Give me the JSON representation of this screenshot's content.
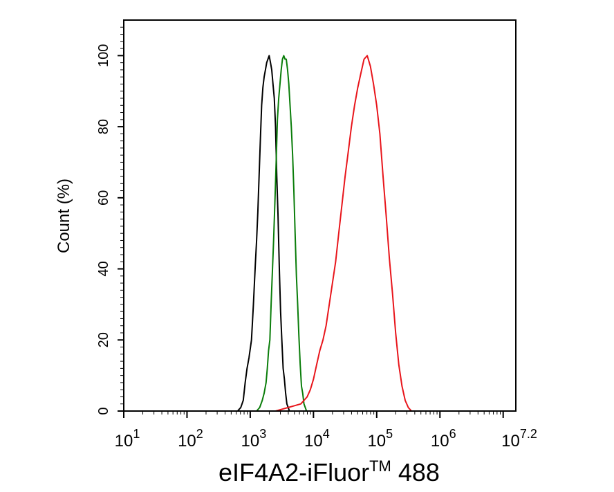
{
  "chart_data": {
    "type": "line",
    "title": "",
    "xlabel": "eIF4A2-iFluor",
    "xlabel_sup": "TM",
    "xlabel_suffix": " 488",
    "ylabel": "Count  (%)",
    "xscale": "log",
    "xlim": [
      10,
      15848932
    ],
    "ylim": [
      0,
      110
    ],
    "grid": false,
    "legend": "none",
    "x_ticks": [
      {
        "base": "10",
        "exp": "1",
        "value": 10
      },
      {
        "base": "10",
        "exp": "2",
        "value": 100
      },
      {
        "base": "10",
        "exp": "3",
        "value": 1000
      },
      {
        "base": "10",
        "exp": "4",
        "value": 10000
      },
      {
        "base": "10",
        "exp": "5",
        "value": 100000
      },
      {
        "base": "10",
        "exp": "6",
        "value": 1000000
      },
      {
        "base": "10",
        "exp": "7.2",
        "value": 15848932
      }
    ],
    "y_ticks": [
      "0",
      "20",
      "40",
      "60",
      "80",
      "100"
    ],
    "series": [
      {
        "color": "#000000",
        "points": [
          [
            631,
            0
          ],
          [
            708,
            1
          ],
          [
            776,
            3
          ],
          [
            832,
            8
          ],
          [
            891,
            12
          ],
          [
            955,
            15
          ],
          [
            1047,
            20
          ],
          [
            1122,
            30
          ],
          [
            1202,
            41
          ],
          [
            1259,
            48
          ],
          [
            1318,
            56
          ],
          [
            1380,
            66
          ],
          [
            1445,
            76
          ],
          [
            1514,
            86
          ],
          [
            1585,
            91
          ],
          [
            1660,
            94
          ],
          [
            1738,
            96
          ],
          [
            1820,
            98
          ],
          [
            1905,
            99
          ],
          [
            1995,
            100
          ],
          [
            2089,
            98
          ],
          [
            2188,
            96
          ],
          [
            2291,
            92
          ],
          [
            2399,
            88
          ],
          [
            2512,
            80
          ],
          [
            2630,
            66
          ],
          [
            2754,
            55
          ],
          [
            2884,
            40
          ],
          [
            3020,
            28
          ],
          [
            3162,
            20
          ],
          [
            3311,
            12
          ],
          [
            3467,
            9
          ],
          [
            3631,
            5
          ],
          [
            3802,
            2
          ],
          [
            3981,
            1
          ],
          [
            4169,
            0
          ]
        ]
      },
      {
        "color": "#0a7d0a",
        "points": [
          [
            1259,
            0
          ],
          [
            1412,
            1
          ],
          [
            1549,
            3
          ],
          [
            1660,
            5
          ],
          [
            1778,
            8
          ],
          [
            1862,
            12
          ],
          [
            1950,
            17
          ],
          [
            2042,
            20
          ],
          [
            2138,
            30
          ],
          [
            2239,
            39
          ],
          [
            2344,
            48
          ],
          [
            2455,
            59
          ],
          [
            2570,
            70
          ],
          [
            2692,
            82
          ],
          [
            2818,
            88
          ],
          [
            2951,
            92
          ],
          [
            3090,
            96
          ],
          [
            3236,
            99
          ],
          [
            3388,
            100
          ],
          [
            3548,
            99
          ],
          [
            3715,
            99
          ],
          [
            3890,
            96
          ],
          [
            4074,
            92
          ],
          [
            4266,
            86
          ],
          [
            4467,
            80
          ],
          [
            4677,
            72
          ],
          [
            4898,
            62
          ],
          [
            5128,
            50
          ],
          [
            5370,
            38
          ],
          [
            5623,
            30
          ],
          [
            5888,
            21
          ],
          [
            6166,
            13
          ],
          [
            6457,
            7
          ],
          [
            6761,
            5
          ],
          [
            7079,
            2
          ],
          [
            7413,
            1
          ],
          [
            7762,
            0
          ]
        ]
      },
      {
        "color": "#e8151b",
        "points": [
          [
            2512,
            0
          ],
          [
            3162,
            0.5
          ],
          [
            3981,
            1
          ],
          [
            5012,
            1.5
          ],
          [
            6310,
            2
          ],
          [
            7079,
            3
          ],
          [
            7943,
            4
          ],
          [
            8913,
            6
          ],
          [
            10000,
            9
          ],
          [
            11220,
            13
          ],
          [
            12589,
            17
          ],
          [
            14125,
            20
          ],
          [
            15849,
            24
          ],
          [
            17783,
            30
          ],
          [
            19953,
            36
          ],
          [
            22387,
            42
          ],
          [
            25119,
            50
          ],
          [
            28184,
            58
          ],
          [
            31623,
            66
          ],
          [
            35481,
            73
          ],
          [
            39811,
            80
          ],
          [
            44668,
            86
          ],
          [
            50119,
            91
          ],
          [
            56234,
            95
          ],
          [
            63096,
            99
          ],
          [
            70795,
            100
          ],
          [
            79433,
            97
          ],
          [
            89125,
            92
          ],
          [
            100000,
            86
          ],
          [
            112202,
            78
          ],
          [
            125893,
            66
          ],
          [
            141254,
            55
          ],
          [
            158489,
            43
          ],
          [
            177828,
            33
          ],
          [
            199526,
            22
          ],
          [
            223872,
            13
          ],
          [
            251189,
            7
          ],
          [
            281838,
            3
          ],
          [
            316228,
            1
          ],
          [
            354813,
            0
          ]
        ]
      }
    ]
  }
}
